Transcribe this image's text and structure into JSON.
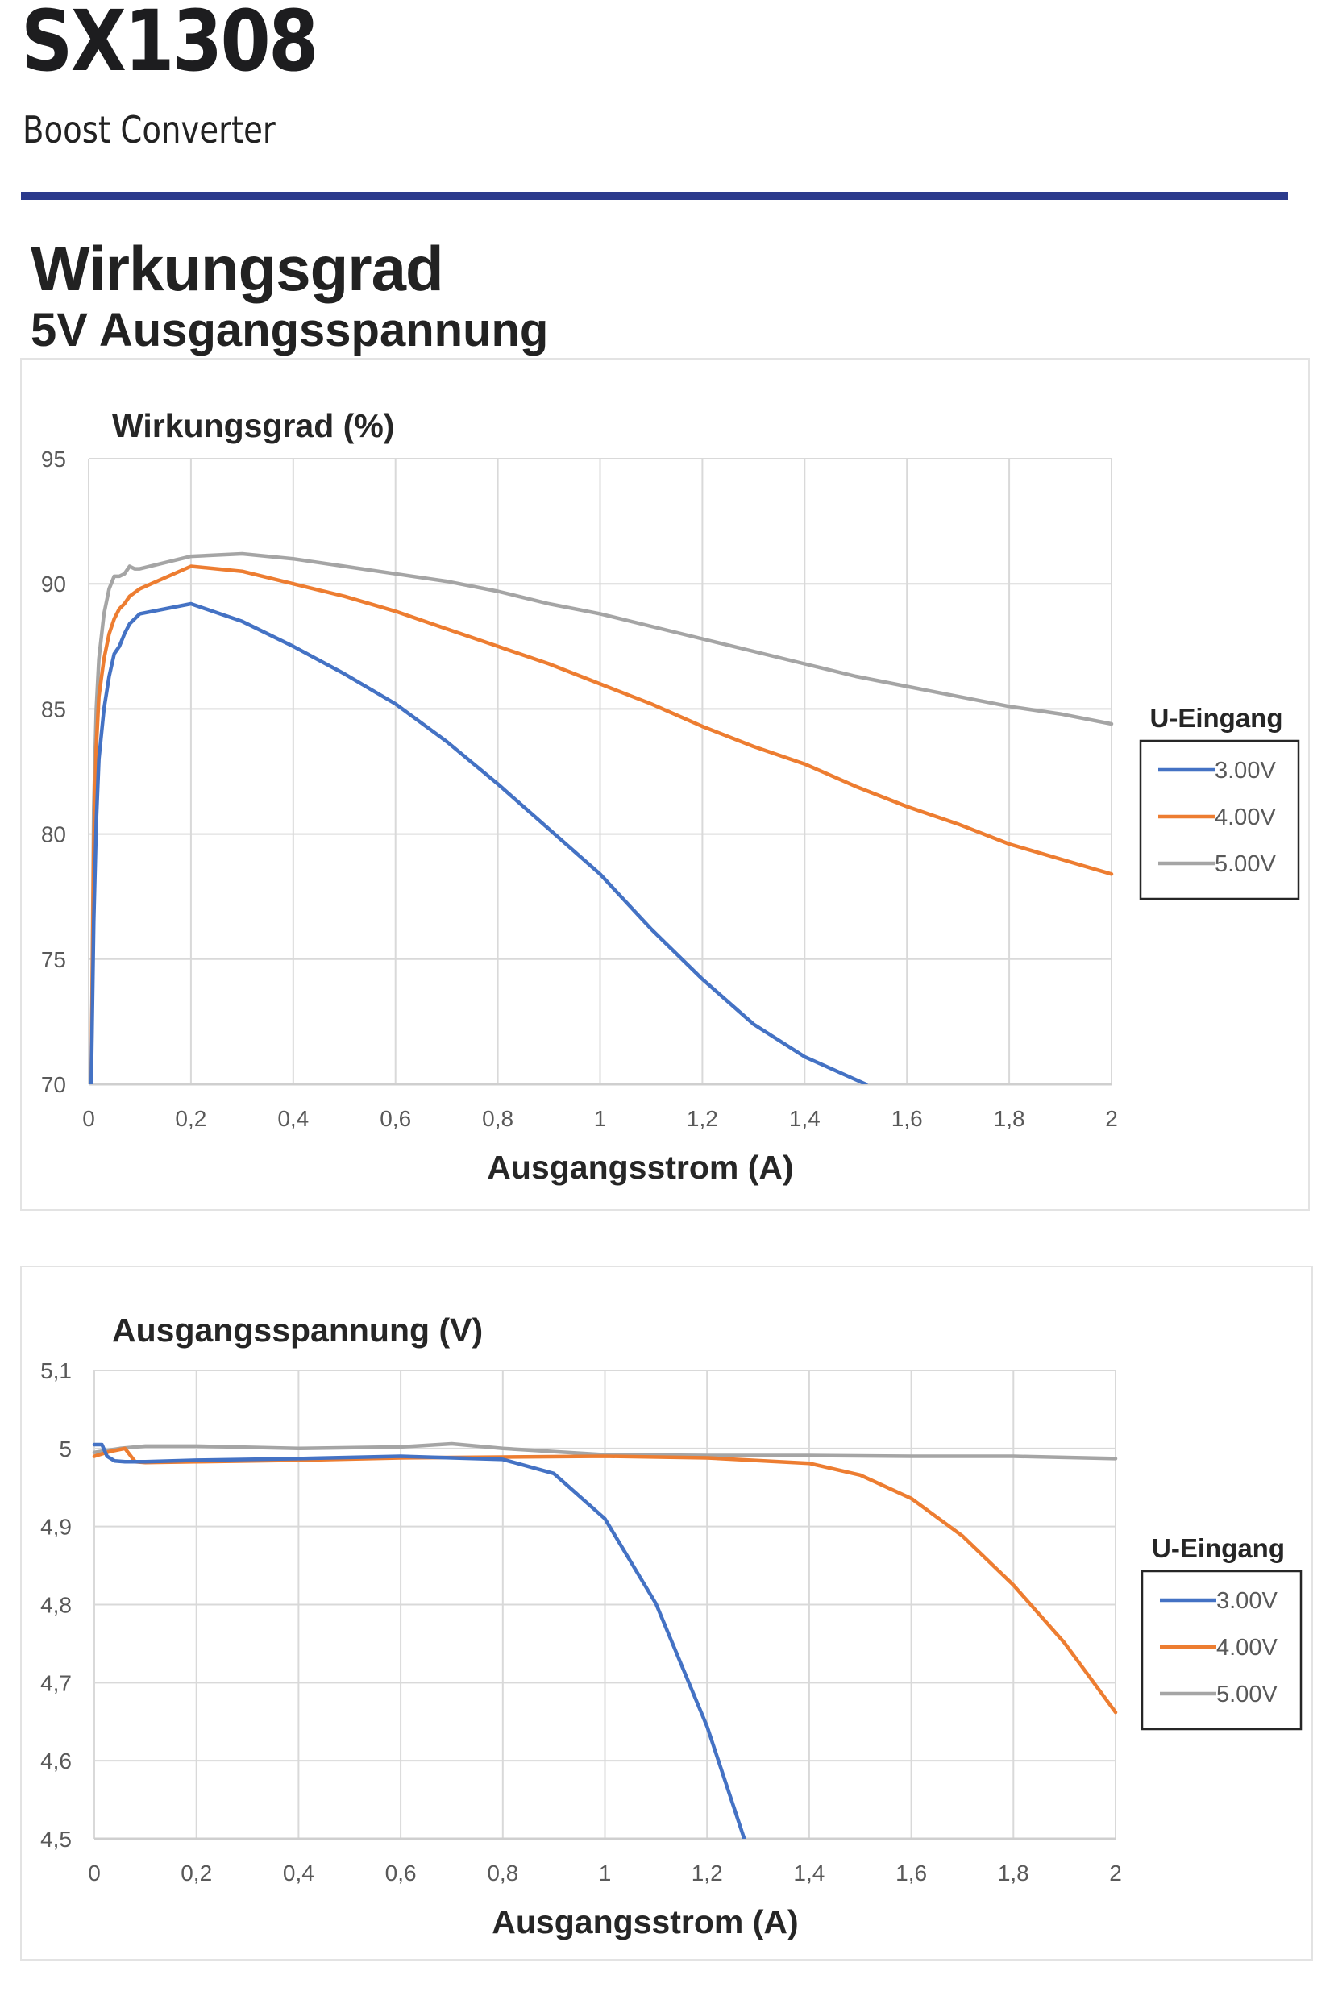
{
  "header": {
    "title": "SX1308",
    "subtitle": "Boost Converter",
    "section_title": "Wirkungsgrad",
    "section_subtitle": "5V Ausgangsspannung",
    "rule_color": "#2b3a8c"
  },
  "chart_data": [
    {
      "type": "line",
      "title": "Wirkungsgrad (%)",
      "xlabel": "Ausgangsstrom (A)",
      "ylabel": "",
      "xlim": [
        0,
        2
      ],
      "ylim": [
        70,
        95
      ],
      "grid": true,
      "x_ticks": [
        "0",
        "0,2",
        "0,4",
        "0,6",
        "0,8",
        "1",
        "1,2",
        "1,4",
        "1,6",
        "1,8",
        "2"
      ],
      "y_ticks": [
        "95",
        "90",
        "85",
        "80",
        "75",
        "70"
      ],
      "x_tick_values": [
        0,
        0.2,
        0.4,
        0.6,
        0.8,
        1.0,
        1.2,
        1.4,
        1.6,
        1.8,
        2.0
      ],
      "y_tick_values": [
        95,
        90,
        85,
        80,
        75,
        70
      ],
      "legend": {
        "title": "U-Eingang",
        "placement": "right"
      },
      "series": [
        {
          "name": "3.00V",
          "color": "#4472c4",
          "x": [
            0.005,
            0.01,
            0.015,
            0.02,
            0.03,
            0.04,
            0.05,
            0.06,
            0.07,
            0.08,
            0.1,
            0.2,
            0.3,
            0.4,
            0.5,
            0.6,
            0.7,
            0.8,
            0.9,
            1.0,
            1.1,
            1.2,
            1.3,
            1.4,
            1.52
          ],
          "y": [
            70.0,
            76.5,
            80.5,
            83.0,
            85.0,
            86.3,
            87.2,
            87.5,
            88.0,
            88.4,
            88.8,
            89.2,
            88.5,
            87.5,
            86.4,
            85.2,
            83.7,
            82.0,
            80.2,
            78.4,
            76.2,
            74.2,
            72.4,
            71.1,
            70.0
          ]
        },
        {
          "name": "4.00V",
          "color": "#ed7d31",
          "x": [
            0.005,
            0.01,
            0.015,
            0.02,
            0.03,
            0.04,
            0.05,
            0.06,
            0.07,
            0.08,
            0.1,
            0.2,
            0.3,
            0.4,
            0.5,
            0.6,
            0.7,
            0.8,
            0.9,
            1.0,
            1.1,
            1.2,
            1.3,
            1.4,
            1.5,
            1.6,
            1.7,
            1.8,
            1.9,
            2.0
          ],
          "y": [
            70.0,
            79.5,
            83.5,
            85.5,
            87.0,
            88.0,
            88.6,
            89.0,
            89.2,
            89.5,
            89.8,
            90.7,
            90.5,
            90.0,
            89.5,
            88.9,
            88.2,
            87.5,
            86.8,
            86.0,
            85.2,
            84.3,
            83.5,
            82.8,
            81.9,
            81.1,
            80.4,
            79.6,
            79.0,
            78.4
          ]
        },
        {
          "name": "5.00V",
          "color": "#a5a5a5",
          "x": [
            0.005,
            0.01,
            0.015,
            0.02,
            0.03,
            0.04,
            0.05,
            0.06,
            0.07,
            0.08,
            0.09,
            0.1,
            0.2,
            0.3,
            0.4,
            0.5,
            0.6,
            0.7,
            0.8,
            0.9,
            1.0,
            1.1,
            1.2,
            1.3,
            1.4,
            1.5,
            1.6,
            1.7,
            1.8,
            1.9,
            2.0
          ],
          "y": [
            70.0,
            81.0,
            85.0,
            87.0,
            88.8,
            89.8,
            90.3,
            90.3,
            90.4,
            90.7,
            90.6,
            90.6,
            91.1,
            91.2,
            91.0,
            90.7,
            90.4,
            90.1,
            89.7,
            89.2,
            88.8,
            88.3,
            87.8,
            87.3,
            86.8,
            86.3,
            85.9,
            85.5,
            85.1,
            84.8,
            84.4
          ]
        }
      ]
    },
    {
      "type": "line",
      "title": "Ausgangsspannung (V)",
      "xlabel": "Ausgangsstrom (A)",
      "ylabel": "",
      "xlim": [
        0,
        2
      ],
      "ylim": [
        4.5,
        5.1
      ],
      "grid": true,
      "x_ticks": [
        "0",
        "0,2",
        "0,4",
        "0,6",
        "0,8",
        "1",
        "1,2",
        "1,4",
        "1,6",
        "1,8",
        "2"
      ],
      "y_ticks": [
        "5,1",
        "5",
        "4,9",
        "4,8",
        "4,7",
        "4,6",
        "4,5"
      ],
      "x_tick_values": [
        0,
        0.2,
        0.4,
        0.6,
        0.8,
        1.0,
        1.2,
        1.4,
        1.6,
        1.8,
        2.0
      ],
      "y_tick_values": [
        5.1,
        5.0,
        4.9,
        4.8,
        4.7,
        4.6,
        4.5
      ],
      "legend": {
        "title": "U-Eingang",
        "placement": "right"
      },
      "series": [
        {
          "name": "3.00V",
          "color": "#4472c4",
          "x": [
            0.0,
            0.015,
            0.025,
            0.04,
            0.06,
            0.1,
            0.2,
            0.4,
            0.6,
            0.8,
            0.9,
            1.0,
            1.1,
            1.2,
            1.273
          ],
          "y": [
            5.005,
            5.005,
            4.99,
            4.984,
            4.983,
            4.983,
            4.985,
            4.987,
            4.99,
            4.986,
            4.968,
            4.91,
            4.801,
            4.644,
            4.5
          ]
        },
        {
          "name": "4.00V",
          "color": "#ed7d31",
          "x": [
            0.0,
            0.03,
            0.06,
            0.08,
            0.1,
            0.2,
            0.4,
            0.6,
            0.8,
            1.0,
            1.2,
            1.4,
            1.5,
            1.6,
            1.7,
            1.8,
            1.9,
            2.0
          ],
          "y": [
            4.99,
            4.996,
            5.0,
            4.983,
            4.982,
            4.983,
            4.985,
            4.988,
            4.989,
            4.99,
            4.988,
            4.981,
            4.966,
            4.936,
            4.888,
            4.825,
            4.751,
            4.662
          ]
        },
        {
          "name": "5.00V",
          "color": "#a5a5a5",
          "x": [
            0.0,
            0.05,
            0.1,
            0.2,
            0.4,
            0.6,
            0.7,
            0.8,
            1.0,
            1.2,
            1.4,
            1.6,
            1.8,
            2.0
          ],
          "y": [
            4.995,
            5.0,
            5.003,
            5.003,
            5.0,
            5.002,
            5.006,
            5.0,
            4.992,
            4.991,
            4.991,
            4.99,
            4.99,
            4.987
          ]
        }
      ]
    }
  ]
}
